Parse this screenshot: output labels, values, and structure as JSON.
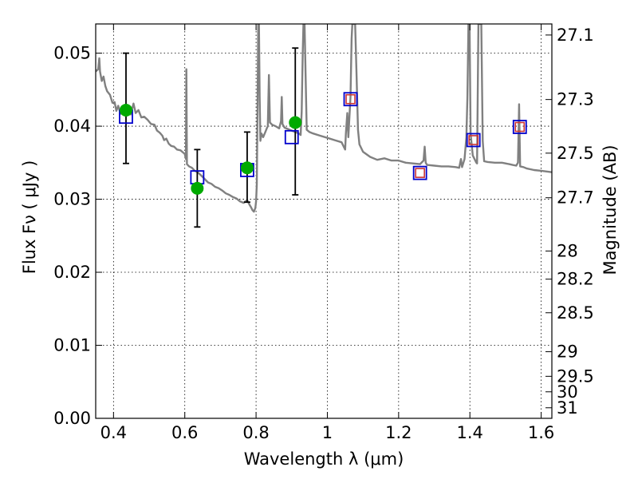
{
  "chart_data": {
    "type": "scatter",
    "title": "",
    "xlabel": "Wavelength  λ (μm)",
    "ylabel": "Flux  Fν  ( μJy )",
    "ylabel_right": "Magnitude (AB)",
    "xlim": [
      0.35,
      1.63
    ],
    "ylim": [
      0.0,
      0.054
    ],
    "grid": true,
    "x_ticks": [
      {
        "value": 0.4,
        "label": "0.4"
      },
      {
        "value": 0.6,
        "label": "0.6"
      },
      {
        "value": 0.8,
        "label": "0.8"
      },
      {
        "value": 1.0,
        "label": "1"
      },
      {
        "value": 1.2,
        "label": "1.2"
      },
      {
        "value": 1.4,
        "label": "1.4"
      },
      {
        "value": 1.6,
        "label": "1.6"
      }
    ],
    "y_ticks": [
      {
        "value": 0.0,
        "label": "0.00"
      },
      {
        "value": 0.01,
        "label": "0.01"
      },
      {
        "value": 0.02,
        "label": "0.02"
      },
      {
        "value": 0.03,
        "label": "0.03"
      },
      {
        "value": 0.04,
        "label": "0.04"
      },
      {
        "value": 0.05,
        "label": "0.05"
      }
    ],
    "right_ticks": [
      {
        "mag": 27.1,
        "label": "27.1"
      },
      {
        "mag": 27.3,
        "label": "27.3"
      },
      {
        "mag": 27.5,
        "label": "27.5"
      },
      {
        "mag": 27.7,
        "label": "27.7"
      },
      {
        "mag": 28,
        "label": "28"
      },
      {
        "mag": 28.2,
        "label": "28.2"
      },
      {
        "mag": 28.5,
        "label": "28.5"
      },
      {
        "mag": 29,
        "label": "29"
      },
      {
        "mag": 29.5,
        "label": "29.5"
      },
      {
        "mag": 30,
        "label": "30"
      },
      {
        "mag": 31,
        "label": "31"
      }
    ],
    "model_spectrum": {
      "color": "#808080",
      "points": [
        [
          0.35,
          0.0475
        ],
        [
          0.357,
          0.0478
        ],
        [
          0.36,
          0.0493
        ],
        [
          0.362,
          0.0475
        ],
        [
          0.367,
          0.0462
        ],
        [
          0.372,
          0.0468
        ],
        [
          0.377,
          0.0455
        ],
        [
          0.382,
          0.0448
        ],
        [
          0.39,
          0.0443
        ],
        [
          0.397,
          0.0432
        ],
        [
          0.403,
          0.0433
        ],
        [
          0.408,
          0.0421
        ],
        [
          0.413,
          0.0428
        ],
        [
          0.42,
          0.0417
        ],
        [
          0.427,
          0.0425
        ],
        [
          0.435,
          0.0419
        ],
        [
          0.44,
          0.0428
        ],
        [
          0.448,
          0.0416
        ],
        [
          0.456,
          0.0431
        ],
        [
          0.462,
          0.0418
        ],
        [
          0.47,
          0.0422
        ],
        [
          0.478,
          0.0412
        ],
        [
          0.486,
          0.0413
        ],
        [
          0.495,
          0.0409
        ],
        [
          0.505,
          0.0403
        ],
        [
          0.515,
          0.0402
        ],
        [
          0.522,
          0.0394
        ],
        [
          0.53,
          0.0391
        ],
        [
          0.537,
          0.0387
        ],
        [
          0.542,
          0.0381
        ],
        [
          0.548,
          0.0383
        ],
        [
          0.555,
          0.0376
        ],
        [
          0.562,
          0.0373
        ],
        [
          0.57,
          0.0372
        ],
        [
          0.578,
          0.0368
        ],
        [
          0.588,
          0.0367
        ],
        [
          0.595,
          0.0364
        ],
        [
          0.6,
          0.0362
        ],
        [
          0.603,
          0.0355
        ],
        [
          0.6045,
          0.0478
        ],
        [
          0.606,
          0.0348
        ],
        [
          0.612,
          0.0345
        ],
        [
          0.62,
          0.0343
        ],
        [
          0.628,
          0.0339
        ],
        [
          0.636,
          0.0337
        ],
        [
          0.645,
          0.0333
        ],
        [
          0.655,
          0.0328
        ],
        [
          0.665,
          0.0323
        ],
        [
          0.675,
          0.0321
        ],
        [
          0.685,
          0.0317
        ],
        [
          0.695,
          0.0315
        ],
        [
          0.705,
          0.0312
        ],
        [
          0.715,
          0.0308
        ],
        [
          0.725,
          0.0306
        ],
        [
          0.735,
          0.0303
        ],
        [
          0.745,
          0.0301
        ],
        [
          0.755,
          0.0297
        ],
        [
          0.765,
          0.0295
        ],
        [
          0.775,
          0.0299
        ],
        [
          0.782,
          0.0292
        ],
        [
          0.786,
          0.0289
        ],
        [
          0.79,
          0.0285
        ],
        [
          0.794,
          0.0283
        ],
        [
          0.798,
          0.0288
        ],
        [
          0.8,
          0.0297
        ],
        [
          0.802,
          0.032
        ],
        [
          0.804,
          0.042
        ],
        [
          0.806,
          0.054
        ],
        [
          0.808,
          0.054
        ],
        [
          0.81,
          0.044
        ],
        [
          0.812,
          0.038
        ],
        [
          0.815,
          0.039
        ],
        [
          0.82,
          0.0385
        ],
        [
          0.826,
          0.0392
        ],
        [
          0.83,
          0.0397
        ],
        [
          0.833,
          0.04
        ],
        [
          0.836,
          0.047
        ],
        [
          0.839,
          0.0405
        ],
        [
          0.845,
          0.0402
        ],
        [
          0.855,
          0.04
        ],
        [
          0.865,
          0.0397
        ],
        [
          0.87,
          0.0407
        ],
        [
          0.872,
          0.044
        ],
        [
          0.874,
          0.0403
        ],
        [
          0.88,
          0.0398
        ],
        [
          0.89,
          0.0396
        ],
        [
          0.9,
          0.0394
        ],
        [
          0.91,
          0.0392
        ],
        [
          0.92,
          0.039
        ],
        [
          0.925,
          0.0388
        ],
        [
          0.928,
          0.042
        ],
        [
          0.931,
          0.05
        ],
        [
          0.933,
          0.054
        ],
        [
          0.936,
          0.054
        ],
        [
          0.939,
          0.047
        ],
        [
          0.942,
          0.0395
        ],
        [
          0.95,
          0.0392
        ],
        [
          0.96,
          0.039
        ],
        [
          0.98,
          0.0387
        ],
        [
          1.0,
          0.0384
        ],
        [
          1.02,
          0.0381
        ],
        [
          1.04,
          0.0378
        ],
        [
          1.05,
          0.0368
        ],
        [
          1.052,
          0.039
        ],
        [
          1.056,
          0.0418
        ],
        [
          1.059,
          0.0385
        ],
        [
          1.065,
          0.044
        ],
        [
          1.068,
          0.052
        ],
        [
          1.07,
          0.054
        ],
        [
          1.078,
          0.054
        ],
        [
          1.082,
          0.047
        ],
        [
          1.086,
          0.0395
        ],
        [
          1.09,
          0.0375
        ],
        [
          1.1,
          0.0365
        ],
        [
          1.12,
          0.0358
        ],
        [
          1.14,
          0.0354
        ],
        [
          1.16,
          0.0356
        ],
        [
          1.18,
          0.0353
        ],
        [
          1.2,
          0.0353
        ],
        [
          1.22,
          0.035
        ],
        [
          1.24,
          0.0349
        ],
        [
          1.26,
          0.0348
        ],
        [
          1.27,
          0.0353
        ],
        [
          1.273,
          0.0372
        ],
        [
          1.276,
          0.035
        ],
        [
          1.28,
          0.0347
        ],
        [
          1.3,
          0.0346
        ],
        [
          1.32,
          0.0345
        ],
        [
          1.34,
          0.0345
        ],
        [
          1.36,
          0.0344
        ],
        [
          1.37,
          0.0343
        ],
        [
          1.375,
          0.0355
        ],
        [
          1.378,
          0.0344
        ],
        [
          1.385,
          0.0355
        ],
        [
          1.39,
          0.0385
        ],
        [
          1.393,
          0.044
        ],
        [
          1.396,
          0.054
        ],
        [
          1.399,
          0.054
        ],
        [
          1.402,
          0.039
        ],
        [
          1.408,
          0.036
        ],
        [
          1.418,
          0.035
        ],
        [
          1.42,
          0.0349
        ],
        [
          1.424,
          0.054
        ],
        [
          1.432,
          0.054
        ],
        [
          1.436,
          0.038
        ],
        [
          1.44,
          0.0352
        ],
        [
          1.45,
          0.0351
        ],
        [
          1.47,
          0.035
        ],
        [
          1.49,
          0.035
        ],
        [
          1.5,
          0.0349
        ],
        [
          1.51,
          0.0348
        ],
        [
          1.52,
          0.0347
        ],
        [
          1.53,
          0.0346
        ],
        [
          1.535,
          0.035
        ],
        [
          1.538,
          0.043
        ],
        [
          1.541,
          0.0345
        ],
        [
          1.55,
          0.0344
        ],
        [
          1.56,
          0.0342
        ],
        [
          1.58,
          0.034
        ],
        [
          1.6,
          0.0339
        ],
        [
          1.615,
          0.0338
        ],
        [
          1.63,
          0.0337
        ]
      ]
    },
    "observed_points": {
      "color": "#00aa00",
      "points": [
        {
          "x": 0.435,
          "y": 0.0422,
          "yerr_low": 0.0349,
          "yerr_high": 0.05
        },
        {
          "x": 0.635,
          "y": 0.0315,
          "yerr_low": 0.0262,
          "yerr_high": 0.0368
        },
        {
          "x": 0.775,
          "y": 0.0343,
          "yerr_low": 0.0296,
          "yerr_high": 0.0392
        },
        {
          "x": 0.91,
          "y": 0.0405,
          "yerr_low": 0.0306,
          "yerr_high": 0.0507
        }
      ]
    },
    "model_photometry": {
      "color": "#0000cc",
      "points": [
        {
          "x": 0.435,
          "y": 0.0413
        },
        {
          "x": 0.635,
          "y": 0.033
        },
        {
          "x": 0.775,
          "y": 0.034
        },
        {
          "x": 0.9,
          "y": 0.0385
        },
        {
          "x": 1.065,
          "y": 0.0437
        },
        {
          "x": 1.26,
          "y": 0.0336
        },
        {
          "x": 1.41,
          "y": 0.0381
        },
        {
          "x": 1.54,
          "y": 0.0399
        }
      ]
    },
    "ir_points": {
      "color": "#cc3333",
      "points": [
        {
          "x": 1.065,
          "y": 0.0437
        },
        {
          "x": 1.26,
          "y": 0.0336
        },
        {
          "x": 1.41,
          "y": 0.0381
        },
        {
          "x": 1.54,
          "y": 0.0399
        }
      ]
    }
  }
}
